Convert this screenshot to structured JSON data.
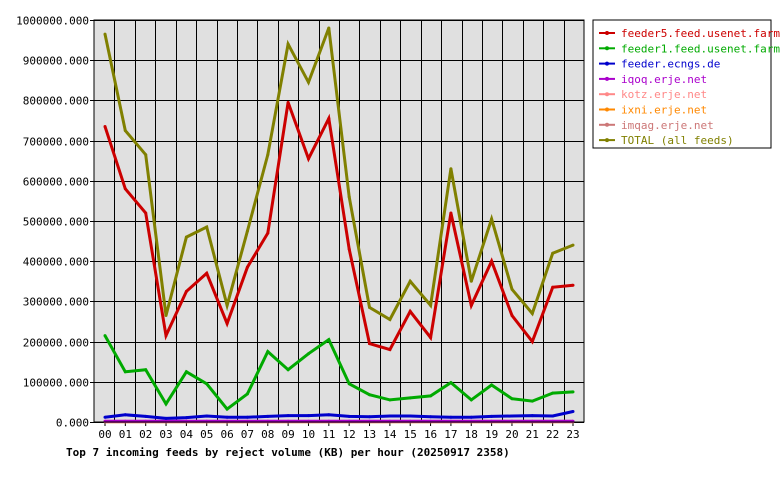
{
  "chart_data": {
    "type": "line",
    "title": "Top 7 incoming feeds by reject volume (KB) per hour (20250917 2358)",
    "xlabel": "",
    "ylabel": "",
    "categories": [
      "00",
      "01",
      "02",
      "03",
      "04",
      "05",
      "06",
      "07",
      "08",
      "09",
      "10",
      "11",
      "12",
      "13",
      "14",
      "15",
      "16",
      "17",
      "18",
      "19",
      "20",
      "21",
      "22",
      "23"
    ],
    "ylim": [
      0,
      1000000
    ],
    "yticks": [
      0,
      100000,
      200000,
      300000,
      400000,
      500000,
      600000,
      700000,
      800000,
      900000,
      1000000
    ],
    "ytick_labels": [
      "0.000",
      "100000.000",
      "200000.000",
      "300000.000",
      "400000.000",
      "500000.000",
      "600000.000",
      "700000.000",
      "800000.000",
      "900000.000",
      "1000000.000"
    ],
    "grid": true,
    "legend_position": "right",
    "series": [
      {
        "name": "feeder5.feed.usenet.farm",
        "color": "#cc0000",
        "values": [
          735000,
          580000,
          520000,
          215000,
          325000,
          370000,
          245000,
          385000,
          470000,
          795000,
          655000,
          755000,
          430000,
          195000,
          180000,
          275000,
          210000,
          520000,
          290000,
          400000,
          265000,
          200000,
          335000,
          340000
        ]
      },
      {
        "name": "feeder1.feed.usenet.farm",
        "color": "#00aa00",
        "values": [
          215000,
          125000,
          130000,
          45000,
          125000,
          95000,
          32000,
          70000,
          175000,
          130000,
          170000,
          205000,
          95000,
          68000,
          55000,
          60000,
          65000,
          98000,
          55000,
          92000,
          58000,
          52000,
          72000,
          75000
        ]
      },
      {
        "name": "feeder.ecngs.de",
        "color": "#0000cc",
        "values": [
          12000,
          18000,
          14000,
          9000,
          11000,
          15000,
          12000,
          12000,
          14000,
          16000,
          16000,
          18000,
          14000,
          13000,
          15000,
          15000,
          13000,
          12000,
          12000,
          14000,
          15000,
          16000,
          15000,
          26000
        ]
      },
      {
        "name": "iqoq.erje.net",
        "color": "#aa00cc",
        "values": [
          2000,
          2000,
          2000,
          2000,
          2000,
          2000,
          2000,
          2000,
          2000,
          2000,
          2000,
          2000,
          2000,
          2000,
          2000,
          2000,
          2000,
          2000,
          2000,
          2000,
          2000,
          2000,
          2000,
          2000
        ]
      },
      {
        "name": "kotz.erje.net",
        "color": "#ff8888",
        "values": [
          1500,
          1500,
          1500,
          1500,
          1500,
          1500,
          1500,
          1500,
          1500,
          1500,
          1500,
          1500,
          1500,
          1500,
          1500,
          1500,
          1500,
          1500,
          1500,
          1500,
          1500,
          1500,
          1500,
          1500
        ]
      },
      {
        "name": "ixni.erje.net",
        "color": "#ff8800",
        "values": [
          1000,
          1000,
          1000,
          1000,
          1000,
          1000,
          1000,
          1000,
          1000,
          1000,
          1000,
          1000,
          1000,
          1000,
          1000,
          1000,
          1000,
          1000,
          1000,
          1000,
          1000,
          1000,
          1000,
          1000
        ]
      },
      {
        "name": "imqag.erje.net",
        "color": "#cc7777",
        "values": [
          800,
          800,
          800,
          800,
          800,
          800,
          800,
          800,
          800,
          800,
          800,
          800,
          800,
          800,
          800,
          800,
          800,
          800,
          800,
          800,
          800,
          800,
          800,
          800
        ]
      },
      {
        "name": "TOTAL (all feeds)",
        "color": "#808000",
        "values": [
          965000,
          725000,
          665000,
          265000,
          460000,
          485000,
          290000,
          475000,
          665000,
          940000,
          845000,
          980000,
          560000,
          285000,
          255000,
          350000,
          290000,
          630000,
          350000,
          505000,
          330000,
          270000,
          420000,
          440000
        ]
      }
    ]
  }
}
